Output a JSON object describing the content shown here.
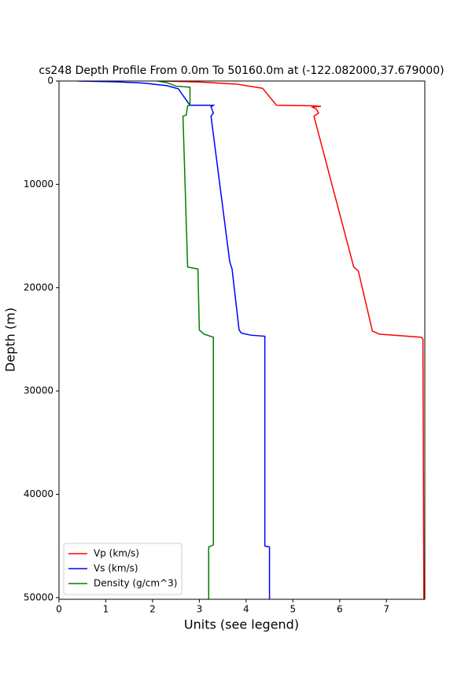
{
  "chart_data": {
    "type": "line",
    "title": "cs248 Depth Profile From 0.0m To 50160.0m at (-122.082000,37.679000)",
    "x_label": "Units (see legend)",
    "y_label": "Depth (m)",
    "xlim": [
      0,
      7.82
    ],
    "ylim": [
      50160,
      0
    ],
    "y_inverted": true,
    "xticks": [
      0,
      1,
      2,
      3,
      4,
      5,
      6,
      7
    ],
    "yticks": [
      0,
      10000,
      20000,
      30000,
      40000,
      50000
    ],
    "grid": false,
    "legend": "lower left",
    "series": [
      {
        "name": "Vp (km/s)",
        "color": "#ff0000",
        "x": [
          2.2,
          3.0,
          3.8,
          4.35,
          4.65,
          5.4,
          5.6,
          5.4,
          5.5,
          5.55,
          5.45,
          6.3,
          6.4,
          6.7,
          6.85,
          7.75,
          7.78,
          7.8
        ],
        "values": [
          0,
          100,
          300,
          700,
          2350,
          2400,
          2450,
          2500,
          2700,
          3100,
          3400,
          18000,
          18400,
          24200,
          24500,
          24800,
          25000,
          50160
        ]
      },
      {
        "name": "Vs (km/s)",
        "color": "#0000ff",
        "x": [
          0.4,
          1.2,
          1.8,
          2.3,
          2.55,
          2.8,
          3.3,
          3.25,
          3.3,
          3.25,
          3.65,
          3.7,
          3.85,
          3.9,
          4.1,
          4.4,
          4.4,
          4.5,
          4.5
        ],
        "values": [
          0,
          80,
          200,
          450,
          750,
          2350,
          2350,
          2500,
          3100,
          3400,
          17500,
          18200,
          24100,
          24400,
          24600,
          24700,
          45000,
          45100,
          50160
        ]
      },
      {
        "name": "Density (g/cm^3)",
        "color": "#008000",
        "x": [
          2.1,
          2.3,
          2.5,
          2.8,
          2.8,
          2.75,
          2.72,
          2.65,
          2.75,
          2.97,
          3.0,
          3.1,
          3.3,
          3.3,
          3.2,
          3.2
        ],
        "values": [
          0,
          150,
          500,
          600,
          2350,
          2400,
          3300,
          3400,
          18000,
          18200,
          24100,
          24500,
          24800,
          44900,
          45100,
          50160
        ]
      }
    ]
  }
}
